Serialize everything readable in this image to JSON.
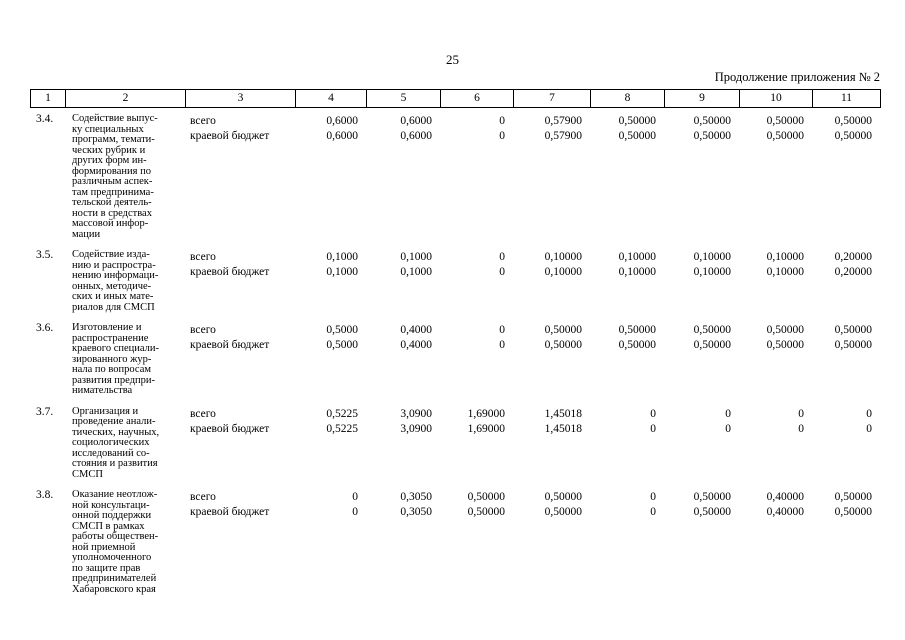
{
  "page": {
    "number": "25",
    "continuation": "Продолжение приложения № 2"
  },
  "table": {
    "column_headers": [
      "1",
      "2",
      "3",
      "4",
      "5",
      "6",
      "7",
      "8",
      "9",
      "10",
      "11"
    ],
    "rows": [
      {
        "num": "3.4.",
        "name_lines": [
          "Содействие выпус-",
          "ку специальных",
          "программ, темати-",
          "ческих рубрик и",
          "других форм ин-",
          "формирования по",
          "различным аспек-",
          "там предпринима-",
          "тельской деятель-",
          "ности в средствах",
          "массовой инфор-",
          "мации"
        ],
        "budget_lines": [
          {
            "label": "всего",
            "values": [
              "0,6000",
              "0,6000",
              "0",
              "0,57900",
              "0,50000",
              "0,50000",
              "0,50000",
              "0,50000"
            ]
          },
          {
            "label": "краевой бюджет",
            "values": [
              "0,6000",
              "0,6000",
              "0",
              "0,57900",
              "0,50000",
              "0,50000",
              "0,50000",
              "0,50000"
            ]
          }
        ]
      },
      {
        "num": "3.5.",
        "name_lines": [
          "Содействие изда-",
          "нию и распростра-",
          "нению информаци-",
          "онных, методиче-",
          "ских и иных мате-",
          "риалов для СМСП"
        ],
        "budget_lines": [
          {
            "label": "всего",
            "values": [
              "0,1000",
              "0,1000",
              "0",
              "0,10000",
              "0,10000",
              "0,10000",
              "0,10000",
              "0,20000"
            ]
          },
          {
            "label": "краевой бюджет",
            "values": [
              "0,1000",
              "0,1000",
              "0",
              "0,10000",
              "0,10000",
              "0,10000",
              "0,10000",
              "0,20000"
            ]
          }
        ]
      },
      {
        "num": "3.6.",
        "name_lines": [
          "Изготовление и",
          "распространение",
          "краевого специали-",
          "зированного жур-",
          "нала по вопросам",
          "развития предпри-",
          "нимательства"
        ],
        "budget_lines": [
          {
            "label": "всего",
            "values": [
              "0,5000",
              "0,4000",
              "0",
              "0,50000",
              "0,50000",
              "0,50000",
              "0,50000",
              "0,50000"
            ]
          },
          {
            "label": "краевой бюджет",
            "values": [
              "0,5000",
              "0,4000",
              "0",
              "0,50000",
              "0,50000",
              "0,50000",
              "0,50000",
              "0,50000"
            ]
          }
        ]
      },
      {
        "num": "3.7.",
        "name_lines": [
          "Организация и",
          "проведение анали-",
          "тических, научных,",
          "социологических",
          "исследований со-",
          "стояния и развития",
          "СМСП"
        ],
        "budget_lines": [
          {
            "label": "всего",
            "values": [
              "0,5225",
              "3,0900",
              "1,69000",
              "1,45018",
              "0",
              "0",
              "0",
              "0"
            ]
          },
          {
            "label": "краевой бюджет",
            "values": [
              "0,5225",
              "3,0900",
              "1,69000",
              "1,45018",
              "0",
              "0",
              "0",
              "0"
            ]
          }
        ]
      },
      {
        "num": "3.8.",
        "name_lines": [
          "Оказание неотлож-",
          "ной консультаци-",
          "онной поддержки",
          "СМСП в рамках",
          "работы обществен-",
          "ной приемной",
          "уполномоченного",
          "по защите прав",
          "предпринимателей",
          "Хабаровского края"
        ],
        "budget_lines": [
          {
            "label": "всего",
            "values": [
              "0",
              "0,3050",
              "0,50000",
              "0,50000",
              "0",
              "0,50000",
              "0,40000",
              "0,50000"
            ]
          },
          {
            "label": "краевой бюджет",
            "values": [
              "0",
              "0,3050",
              "0,50000",
              "0,50000",
              "0",
              "0,50000",
              "0,40000",
              "0,50000"
            ]
          }
        ]
      }
    ]
  }
}
